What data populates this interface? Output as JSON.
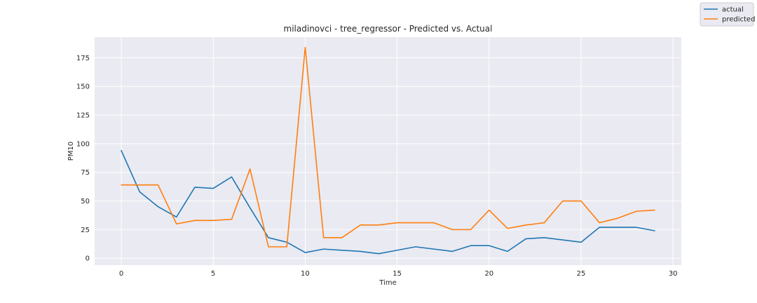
{
  "chart_data": {
    "type": "line",
    "title": "miladinovci - tree_regressor - Predicted vs. Actual",
    "xlabel": "Time",
    "ylabel": "PM10",
    "xlim": [
      -1.45,
      30.45
    ],
    "ylim": [
      -6,
      193
    ],
    "xticks": [
      0,
      5,
      10,
      15,
      20,
      25,
      30
    ],
    "yticks": [
      0,
      25,
      50,
      75,
      100,
      125,
      150,
      175
    ],
    "grid": true,
    "legend_position": "top-right",
    "x": [
      0,
      1,
      2,
      3,
      4,
      5,
      6,
      7,
      8,
      9,
      10,
      11,
      12,
      13,
      14,
      15,
      16,
      17,
      18,
      19,
      20,
      21,
      22,
      23,
      24,
      25,
      26,
      27,
      28,
      29
    ],
    "series": [
      {
        "name": "actual",
        "color": "#1f77b4",
        "values": [
          94,
          58,
          45,
          36,
          62,
          61,
          71,
          44,
          18,
          14,
          5,
          8,
          7,
          6,
          4,
          7,
          10,
          8,
          6,
          11,
          11,
          6,
          17,
          18,
          16,
          14,
          27,
          27,
          27,
          24
        ]
      },
      {
        "name": "predicted",
        "color": "#ff7f0e",
        "values": [
          64,
          64,
          64,
          30,
          33,
          33,
          34,
          78,
          10,
          10,
          184,
          18,
          18,
          29,
          29,
          31,
          31,
          31,
          25,
          25,
          42,
          26,
          29,
          31,
          50,
          50,
          31,
          35,
          41,
          42
        ]
      }
    ]
  },
  "style": {
    "plot_background": "#eaeaf2",
    "grid_color": "#ffffff",
    "text_color": "#262626"
  }
}
